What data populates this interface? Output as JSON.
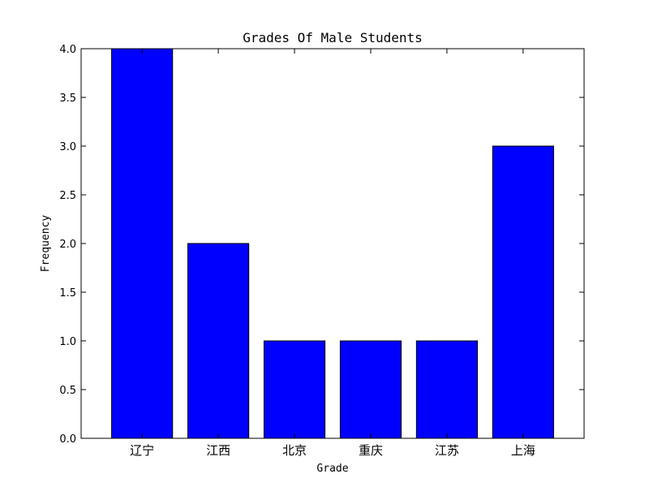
{
  "chart_data": {
    "type": "bar",
    "title": "Grades Of Male Students",
    "xlabel": "Grade",
    "ylabel": "Frequency",
    "categories": [
      "辽宁",
      "江西",
      "北京",
      "重庆",
      "江苏",
      "上海"
    ],
    "values": [
      4,
      2,
      1,
      1,
      1,
      3
    ],
    "ylim": [
      0,
      4
    ],
    "yticks": [
      "0.0",
      "0.5",
      "1.0",
      "1.5",
      "2.0",
      "2.5",
      "3.0",
      "3.5",
      "4.0"
    ],
    "grid": false,
    "legend": "none",
    "bar_color": "#0000ff",
    "edge_color": "#000000"
  }
}
